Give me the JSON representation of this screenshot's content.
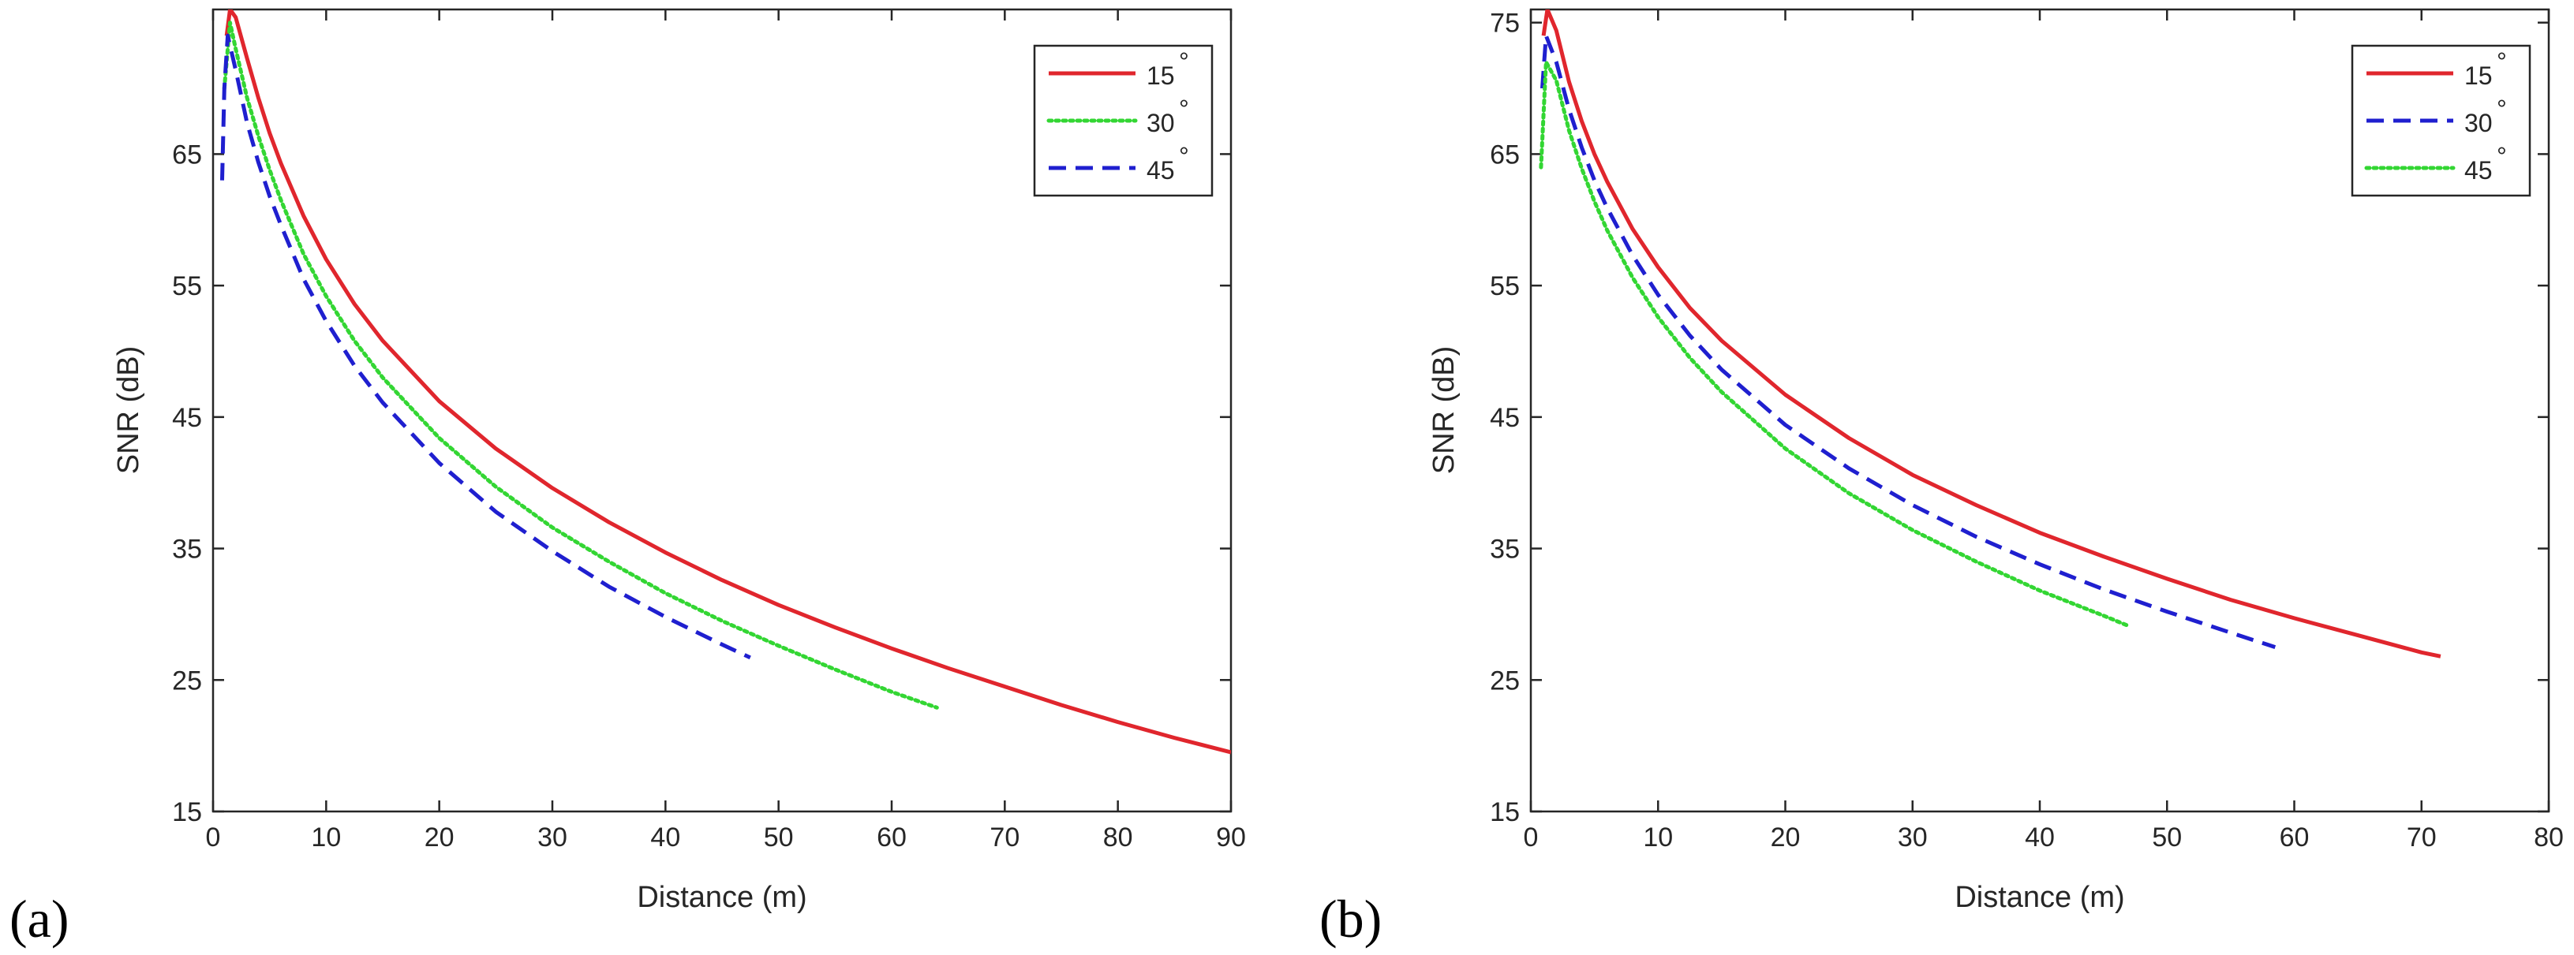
{
  "chart_data": [
    {
      "panel_label": "(a)",
      "type": "line",
      "title": "",
      "xlabel": "Distance (m)",
      "ylabel": "SNR (dB)",
      "xlim": [
        0,
        90
      ],
      "ylim": [
        15,
        76
      ],
      "xticks": [
        0,
        10,
        20,
        30,
        40,
        50,
        60,
        70,
        80,
        90
      ],
      "yticks": [
        15,
        25,
        35,
        45,
        55,
        65
      ],
      "grid": false,
      "legend_position": "top-right",
      "series": [
        {
          "name": "15",
          "degree_mark": "°",
          "color": "#e0262d",
          "style": "solid",
          "x": [
            1.2,
            1.5,
            2,
            3,
            4,
            5,
            6,
            8,
            10,
            12.5,
            15,
            20,
            25,
            30,
            35,
            40,
            45,
            50,
            55,
            60,
            65,
            70,
            75,
            80,
            85,
            90
          ],
          "y": [
            74,
            76,
            75.4,
            72.3,
            69.3,
            66.6,
            64.3,
            60.3,
            57.0,
            53.6,
            50.8,
            46.2,
            42.6,
            39.6,
            37.0,
            34.7,
            32.6,
            30.7,
            29.0,
            27.4,
            25.9,
            24.5,
            23.1,
            21.8,
            20.6,
            19.5
          ]
        },
        {
          "name": "30",
          "degree_mark": "°",
          "color": "#33d633",
          "style": "dotted",
          "x": [
            1.0,
            1.5,
            2,
            3,
            4,
            5,
            6,
            8,
            10,
            12.5,
            15,
            20,
            25,
            30,
            35,
            40,
            45,
            50,
            55,
            60,
            64
          ],
          "y": [
            70,
            75,
            73.0,
            69.3,
            66.4,
            63.8,
            61.5,
            57.4,
            54.2,
            50.8,
            48.0,
            43.4,
            39.7,
            36.6,
            34.0,
            31.6,
            29.5,
            27.6,
            25.8,
            24.1,
            22.9
          ]
        },
        {
          "name": "45",
          "degree_mark": "°",
          "color": "#1f1fcf",
          "style": "dashed",
          "x": [
            0.8,
            1.0,
            1.3,
            2,
            3,
            4,
            5,
            6,
            8,
            10,
            12.5,
            15,
            20,
            25,
            30,
            35,
            40,
            45,
            47.5
          ],
          "y": [
            63,
            70,
            74,
            71.4,
            67.4,
            64.4,
            61.8,
            59.6,
            55.5,
            52.3,
            48.9,
            46.1,
            41.5,
            37.8,
            34.8,
            32.1,
            29.8,
            27.7,
            26.7
          ]
        }
      ]
    },
    {
      "panel_label": "(b)",
      "type": "line",
      "title": "",
      "xlabel": "Distance (m)",
      "ylabel": "SNR (dB)",
      "xlim": [
        0,
        80
      ],
      "ylim": [
        15,
        76
      ],
      "xticks": [
        0,
        10,
        20,
        30,
        40,
        50,
        60,
        70,
        80
      ],
      "yticks": [
        15,
        25,
        35,
        45,
        55,
        65,
        75
      ],
      "grid": false,
      "legend_position": "top-right",
      "series": [
        {
          "name": "15",
          "degree_mark": "°",
          "color": "#e0262d",
          "style": "solid",
          "x": [
            1.0,
            1.3,
            2,
            3,
            4,
            5,
            6,
            8,
            10,
            12.5,
            15,
            20,
            25,
            30,
            35,
            40,
            45,
            50,
            55,
            60,
            65,
            70,
            71.5
          ],
          "y": [
            74,
            76,
            74.4,
            70.5,
            67.5,
            65.0,
            62.9,
            59.3,
            56.4,
            53.3,
            50.8,
            46.7,
            43.4,
            40.6,
            38.3,
            36.2,
            34.4,
            32.7,
            31.1,
            29.7,
            28.4,
            27.1,
            26.8
          ]
        },
        {
          "name": "30",
          "degree_mark": "°",
          "color": "#1f1fcf",
          "style": "dashed",
          "x": [
            0.9,
            1.2,
            2,
            3,
            4,
            5,
            6,
            8,
            10,
            12.5,
            15,
            20,
            25,
            30,
            35,
            40,
            45,
            50,
            55,
            58.5
          ],
          "y": [
            70,
            74,
            72.0,
            68.4,
            65.5,
            63.0,
            60.9,
            57.3,
            54.3,
            51.2,
            48.6,
            44.4,
            41.1,
            38.3,
            35.9,
            33.8,
            31.9,
            30.2,
            28.6,
            27.5
          ]
        },
        {
          "name": "45",
          "degree_mark": "°",
          "color": "#33d633",
          "style": "dotted",
          "x": [
            0.8,
            1.2,
            2,
            3,
            4,
            5,
            6,
            8,
            10,
            12.5,
            15,
            20,
            25,
            30,
            35,
            40,
            45,
            47
          ],
          "y": [
            64,
            72,
            70.6,
            66.8,
            63.9,
            61.4,
            59.2,
            55.6,
            52.6,
            49.5,
            46.9,
            42.6,
            39.2,
            36.4,
            34.0,
            31.8,
            29.9,
            29.1
          ]
        }
      ]
    }
  ]
}
